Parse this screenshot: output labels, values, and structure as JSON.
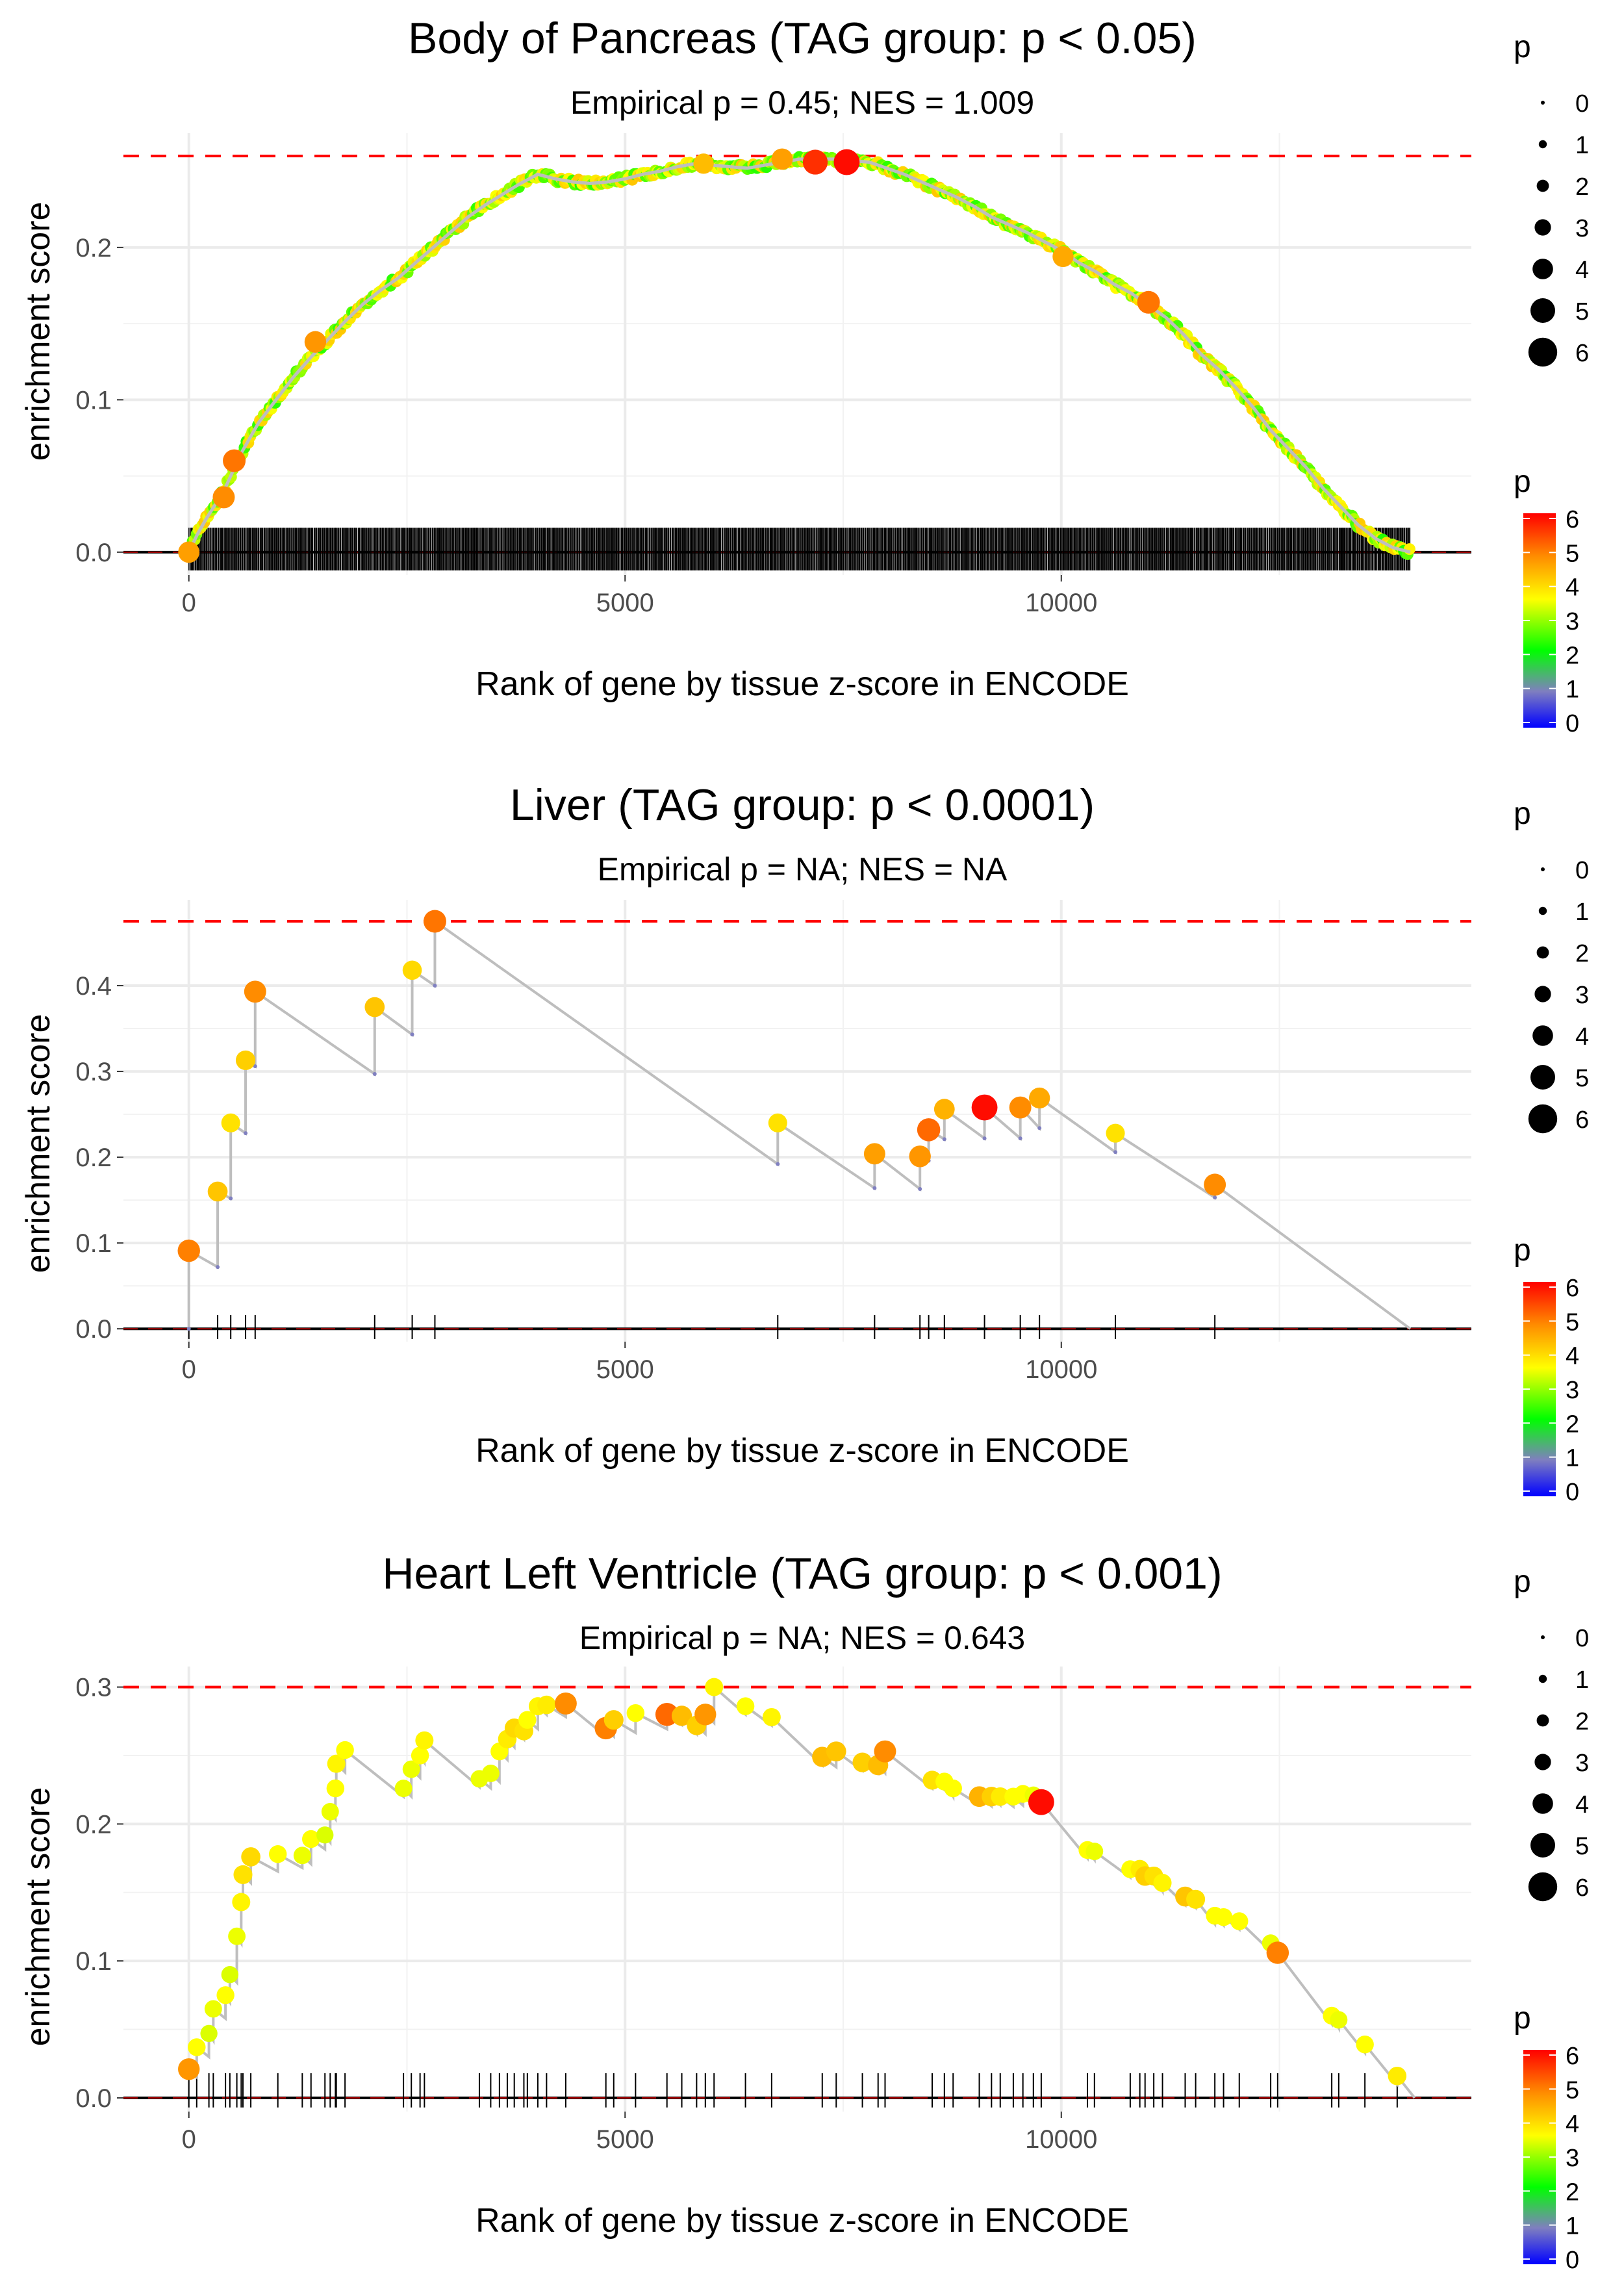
{
  "colors": {
    "threshold_line": "#ff0000",
    "path_line": "#bebebe",
    "zero_line": "#000000",
    "tick_mark": "#000000",
    "grid": "#ebebeb",
    "scale": [
      "#0000ff",
      "#7f7fbf",
      "#00ff00",
      "#ffff00",
      "#ff8c00",
      "#ff0000"
    ]
  },
  "legend": {
    "size_title": "p",
    "size_values": [
      "0",
      "1",
      "2",
      "3",
      "4",
      "5",
      "6"
    ],
    "color_title": "p",
    "color_values": [
      "6",
      "5",
      "4",
      "3",
      "2",
      "1",
      "0"
    ]
  },
  "chart_data": [
    {
      "type": "scatter",
      "title": "Body of Pancreas (TAG group: p < 0.05)",
      "subtitle": "Empirical p = 0.45; NES = 1.009",
      "xlabel": "Rank of gene by tissue z-score in ENCODE",
      "ylabel": "enrichment score",
      "xlim": [
        -750,
        14700
      ],
      "ylim": [
        -0.015,
        0.275
      ],
      "xticks": [
        0,
        5000,
        10000
      ],
      "xtick_labels": [
        "0",
        "5000",
        "10000"
      ],
      "yticks": [
        0.0,
        0.1,
        0.2
      ],
      "ytick_labels": [
        "0.0",
        "0.1",
        "0.2"
      ],
      "max_es": 0.26,
      "x_end": 14000,
      "dense": true,
      "curve_x": [
        0,
        100,
        200,
        400,
        600,
        800,
        1000,
        1200,
        1400,
        1600,
        1800,
        2000,
        2200,
        2400,
        2600,
        2800,
        3000,
        3200,
        3400,
        3600,
        3800,
        4000,
        4200,
        4400,
        4600,
        4800,
        5000,
        5200,
        5400,
        5600,
        5800,
        6000,
        6200,
        6400,
        6600,
        6800,
        7000,
        7200,
        7400,
        7600,
        7800,
        8000,
        8200,
        8400,
        8600,
        8800,
        9000,
        9200,
        9400,
        9600,
        9800,
        10000,
        10200,
        10400,
        10600,
        10800,
        11000,
        11200,
        11400,
        11600,
        11800,
        12000,
        12200,
        12400,
        12600,
        12800,
        13000,
        13200,
        13400,
        13600,
        13800,
        14000
      ],
      "curve_y": [
        0.0,
        0.012,
        0.022,
        0.04,
        0.065,
        0.085,
        0.1,
        0.115,
        0.128,
        0.14,
        0.152,
        0.163,
        0.172,
        0.18,
        0.19,
        0.2,
        0.21,
        0.22,
        0.228,
        0.235,
        0.242,
        0.248,
        0.245,
        0.243,
        0.242,
        0.243,
        0.245,
        0.248,
        0.25,
        0.253,
        0.255,
        0.254,
        0.253,
        0.252,
        0.254,
        0.256,
        0.258,
        0.258,
        0.258,
        0.257,
        0.256,
        0.252,
        0.248,
        0.243,
        0.238,
        0.233,
        0.227,
        0.22,
        0.215,
        0.21,
        0.204,
        0.198,
        0.19,
        0.184,
        0.176,
        0.17,
        0.162,
        0.154,
        0.143,
        0.13,
        0.12,
        0.108,
        0.095,
        0.08,
        0.068,
        0.056,
        0.042,
        0.03,
        0.018,
        0.009,
        0.003,
        0.0
      ],
      "big_points": [
        {
          "x": 0,
          "y": 0.0,
          "p": 4.6
        },
        {
          "x": 400,
          "y": 0.036,
          "p": 4.8
        },
        {
          "x": 520,
          "y": 0.06,
          "p": 5.0
        },
        {
          "x": 1450,
          "y": 0.138,
          "p": 4.7
        },
        {
          "x": 7180,
          "y": 0.256,
          "p": 5.6
        },
        {
          "x": 7540,
          "y": 0.256,
          "p": 5.9
        },
        {
          "x": 11000,
          "y": 0.164,
          "p": 5.0
        },
        {
          "x": 10020,
          "y": 0.194,
          "p": 4.5
        },
        {
          "x": 6800,
          "y": 0.258,
          "p": 4.6
        },
        {
          "x": 5900,
          "y": 0.255,
          "p": 4.3
        }
      ]
    },
    {
      "type": "line",
      "title": "Liver (TAG group: p < 0.0001)",
      "subtitle": "Empirical p = NA; NES = NA",
      "xlabel": "Rank of gene by tissue z-score in ENCODE",
      "ylabel": "enrichment score",
      "xlim": [
        -750,
        14700
      ],
      "ylim": [
        -0.015,
        0.5
      ],
      "xticks": [
        0,
        5000,
        10000
      ],
      "xtick_labels": [
        "0",
        "5000",
        "10000"
      ],
      "yticks": [
        0.0,
        0.1,
        0.2,
        0.3,
        0.4
      ],
      "ytick_labels": [
        "0.0",
        "0.1",
        "0.2",
        "0.3",
        "0.4"
      ],
      "max_es": 0.475,
      "x_end": 14000,
      "hits": [
        {
          "x": 0,
          "y": 0.091,
          "lo": 0.0,
          "p": 4.9
        },
        {
          "x": 330,
          "y": 0.16,
          "lo": 0.072,
          "p": 4.2
        },
        {
          "x": 480,
          "y": 0.24,
          "lo": 0.152,
          "p": 3.9
        },
        {
          "x": 650,
          "y": 0.313,
          "lo": 0.228,
          "p": 4.1
        },
        {
          "x": 760,
          "y": 0.393,
          "lo": 0.306,
          "p": 4.8
        },
        {
          "x": 2130,
          "y": 0.375,
          "lo": 0.297,
          "p": 4.2
        },
        {
          "x": 2560,
          "y": 0.418,
          "lo": 0.343,
          "p": 4.0
        },
        {
          "x": 2820,
          "y": 0.475,
          "lo": 0.4,
          "p": 5.0
        },
        {
          "x": 6750,
          "y": 0.24,
          "lo": 0.192,
          "p": 3.9
        },
        {
          "x": 7860,
          "y": 0.204,
          "lo": 0.164,
          "p": 4.6
        },
        {
          "x": 8380,
          "y": 0.201,
          "lo": 0.163,
          "p": 4.7
        },
        {
          "x": 8480,
          "y": 0.232,
          "lo": 0.196,
          "p": 5.1
        },
        {
          "x": 8660,
          "y": 0.256,
          "lo": 0.221,
          "p": 4.4
        },
        {
          "x": 9120,
          "y": 0.258,
          "lo": 0.222,
          "p": 5.9
        },
        {
          "x": 9530,
          "y": 0.258,
          "lo": 0.222,
          "p": 4.8
        },
        {
          "x": 9750,
          "y": 0.269,
          "lo": 0.234,
          "p": 4.5
        },
        {
          "x": 10620,
          "y": 0.228,
          "lo": 0.206,
          "p": 3.9
        },
        {
          "x": 11760,
          "y": 0.168,
          "lo": 0.153,
          "p": 4.8
        }
      ]
    },
    {
      "type": "line",
      "title": "Heart Left Ventricle (TAG group: p < 0.001)",
      "subtitle": "Empirical p = NA; NES = 0.643",
      "xlabel": "Rank of gene by tissue z-score in ENCODE",
      "ylabel": "enrichment score",
      "xlim": [
        -750,
        14700
      ],
      "ylim": [
        -0.01,
        0.315
      ],
      "xticks": [
        0,
        5000,
        10000
      ],
      "xtick_labels": [
        "0",
        "5000",
        "10000"
      ],
      "yticks": [
        0.0,
        0.1,
        0.2,
        0.3
      ],
      "ytick_labels": [
        "0.0",
        "0.1",
        "0.2",
        "0.3"
      ],
      "max_es": 0.3,
      "x_end": 14050,
      "dots": [
        [
          0,
          0.021,
          4.7
        ],
        [
          90,
          0.037,
          3.6
        ],
        [
          230,
          0.047,
          3.4
        ],
        [
          280,
          0.065,
          3.5
        ],
        [
          420,
          0.075,
          3.6
        ],
        [
          470,
          0.09,
          3.4
        ],
        [
          550,
          0.118,
          3.5
        ],
        [
          600,
          0.143,
          3.7
        ],
        [
          620,
          0.163,
          3.9
        ],
        [
          710,
          0.176,
          4.0
        ],
        [
          1020,
          0.178,
          3.6
        ],
        [
          1300,
          0.177,
          3.5
        ],
        [
          1400,
          0.189,
          3.6
        ],
        [
          1560,
          0.192,
          3.4
        ],
        [
          1620,
          0.209,
          3.5
        ],
        [
          1680,
          0.226,
          3.6
        ],
        [
          1690,
          0.244,
          3.7
        ],
        [
          1790,
          0.254,
          3.6
        ],
        [
          2460,
          0.226,
          3.5
        ],
        [
          2550,
          0.24,
          3.5
        ],
        [
          2650,
          0.25,
          3.6
        ],
        [
          2700,
          0.261,
          3.7
        ],
        [
          3330,
          0.233,
          3.5
        ],
        [
          3460,
          0.237,
          3.5
        ],
        [
          3560,
          0.253,
          3.6
        ],
        [
          3650,
          0.262,
          3.8
        ],
        [
          3730,
          0.27,
          4.0
        ],
        [
          3840,
          0.268,
          3.9
        ],
        [
          3880,
          0.276,
          3.6
        ],
        [
          4000,
          0.286,
          3.7
        ],
        [
          4100,
          0.287,
          3.8
        ],
        [
          4320,
          0.288,
          4.8
        ],
        [
          4780,
          0.27,
          4.9
        ],
        [
          4870,
          0.276,
          4.1
        ],
        [
          5120,
          0.281,
          3.6
        ],
        [
          5480,
          0.28,
          5.1
        ],
        [
          5650,
          0.279,
          4.3
        ],
        [
          5820,
          0.272,
          4.1
        ],
        [
          5920,
          0.28,
          4.7
        ],
        [
          6020,
          0.3,
          3.7
        ],
        [
          6380,
          0.286,
          3.6
        ],
        [
          6680,
          0.278,
          3.7
        ],
        [
          7260,
          0.249,
          4.3
        ],
        [
          7420,
          0.253,
          4.2
        ],
        [
          7720,
          0.245,
          4.1
        ],
        [
          7900,
          0.243,
          4.3
        ],
        [
          7980,
          0.253,
          4.8
        ],
        [
          8520,
          0.232,
          3.9
        ],
        [
          8660,
          0.231,
          3.6
        ],
        [
          8760,
          0.226,
          3.6
        ],
        [
          9060,
          0.22,
          4.4
        ],
        [
          9200,
          0.22,
          4.1
        ],
        [
          9300,
          0.22,
          3.8
        ],
        [
          9450,
          0.22,
          3.6
        ],
        [
          9560,
          0.222,
          3.6
        ],
        [
          9680,
          0.221,
          3.5
        ],
        [
          9770,
          0.216,
          5.9
        ],
        [
          10300,
          0.181,
          3.6
        ],
        [
          10380,
          0.18,
          3.5
        ],
        [
          10790,
          0.167,
          3.6
        ],
        [
          10900,
          0.167,
          3.8
        ],
        [
          10960,
          0.162,
          4.1
        ],
        [
          11060,
          0.162,
          3.9
        ],
        [
          11160,
          0.157,
          3.7
        ],
        [
          11420,
          0.147,
          4.2
        ],
        [
          11540,
          0.145,
          3.9
        ],
        [
          11760,
          0.133,
          3.6
        ],
        [
          11860,
          0.132,
          3.6
        ],
        [
          12040,
          0.129,
          3.6
        ],
        [
          12400,
          0.113,
          3.5
        ],
        [
          12480,
          0.106,
          4.9
        ],
        [
          13100,
          0.06,
          3.6
        ],
        [
          13180,
          0.057,
          3.5
        ],
        [
          13480,
          0.039,
          3.6
        ],
        [
          13850,
          0.016,
          3.8
        ]
      ]
    }
  ]
}
